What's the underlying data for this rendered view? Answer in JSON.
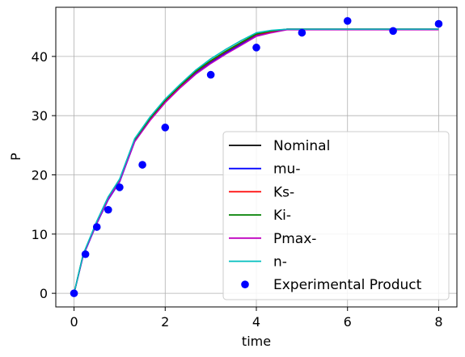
{
  "chart_data": {
    "type": "line",
    "title": "",
    "xlabel": "time",
    "ylabel": "P",
    "xlim": [
      -0.4,
      8.4
    ],
    "ylim": [
      -2.3,
      48.3
    ],
    "xticks": [
      0,
      2,
      4,
      6,
      8
    ],
    "yticks": [
      0,
      10,
      20,
      30,
      40
    ],
    "grid": true,
    "legend_position": "lower-right",
    "x": [
      0,
      0.2,
      0.5,
      0.75,
      1.0,
      1.33,
      1.67,
      2.0,
      2.33,
      2.67,
      3.0,
      3.33,
      3.67,
      4.0,
      4.33,
      4.67,
      5.0,
      6.0,
      7.0,
      8.0
    ],
    "series": [
      {
        "name": "Nominal",
        "color": "#000000",
        "values": [
          0,
          6.5,
          12.0,
          16.0,
          19.0,
          25.8,
          29.5,
          32.5,
          35.0,
          37.4,
          39.2,
          40.8,
          42.3,
          43.7,
          44.2,
          44.6,
          44.6,
          44.6,
          44.6,
          44.6
        ]
      },
      {
        "name": "mu-",
        "color": "#0000ff",
        "values": [
          0,
          6.3,
          11.8,
          15.8,
          18.8,
          25.6,
          29.3,
          32.3,
          34.8,
          37.2,
          39.0,
          40.6,
          42.1,
          43.6,
          44.1,
          44.6,
          44.6,
          44.6,
          44.6,
          44.6
        ]
      },
      {
        "name": "Ks-",
        "color": "#ff0000",
        "values": [
          0,
          6.5,
          12.0,
          16.0,
          19.0,
          25.8,
          29.5,
          32.5,
          35.0,
          37.4,
          39.2,
          40.8,
          42.3,
          43.7,
          44.2,
          44.6,
          44.6,
          44.6,
          44.6,
          44.6
        ]
      },
      {
        "name": "Ki-",
        "color": "#008000",
        "values": [
          0,
          6.5,
          12.0,
          16.1,
          19.1,
          25.9,
          29.6,
          32.6,
          35.1,
          37.5,
          39.3,
          40.9,
          42.4,
          43.8,
          44.3,
          44.6,
          44.6,
          44.6,
          44.6,
          44.6
        ]
      },
      {
        "name": "Pmax-",
        "color": "#bf00bf",
        "values": [
          0,
          6.4,
          11.9,
          15.9,
          18.9,
          25.6,
          29.2,
          32.2,
          34.7,
          37.0,
          38.8,
          40.4,
          41.9,
          43.4,
          44.0,
          44.5,
          44.5,
          44.5,
          44.5,
          44.5
        ]
      },
      {
        "name": "n-",
        "color": "#00bfbf",
        "values": [
          0,
          6.6,
          12.2,
          16.3,
          19.3,
          26.1,
          29.8,
          32.8,
          35.3,
          37.7,
          39.6,
          41.2,
          42.7,
          44.0,
          44.4,
          44.6,
          44.6,
          44.6,
          44.6,
          44.6
        ]
      }
    ],
    "scatter": {
      "name": "Experimental Product",
      "color": "#0000ff",
      "x": [
        0,
        0.25,
        0.5,
        0.75,
        1.0,
        1.5,
        2.0,
        3.0,
        4.0,
        5.0,
        6.0,
        7.0,
        8.0
      ],
      "y": [
        0,
        6.6,
        11.2,
        14.1,
        17.9,
        21.7,
        28.0,
        36.9,
        41.5,
        44.0,
        46.0,
        44.3,
        45.5
      ]
    }
  }
}
